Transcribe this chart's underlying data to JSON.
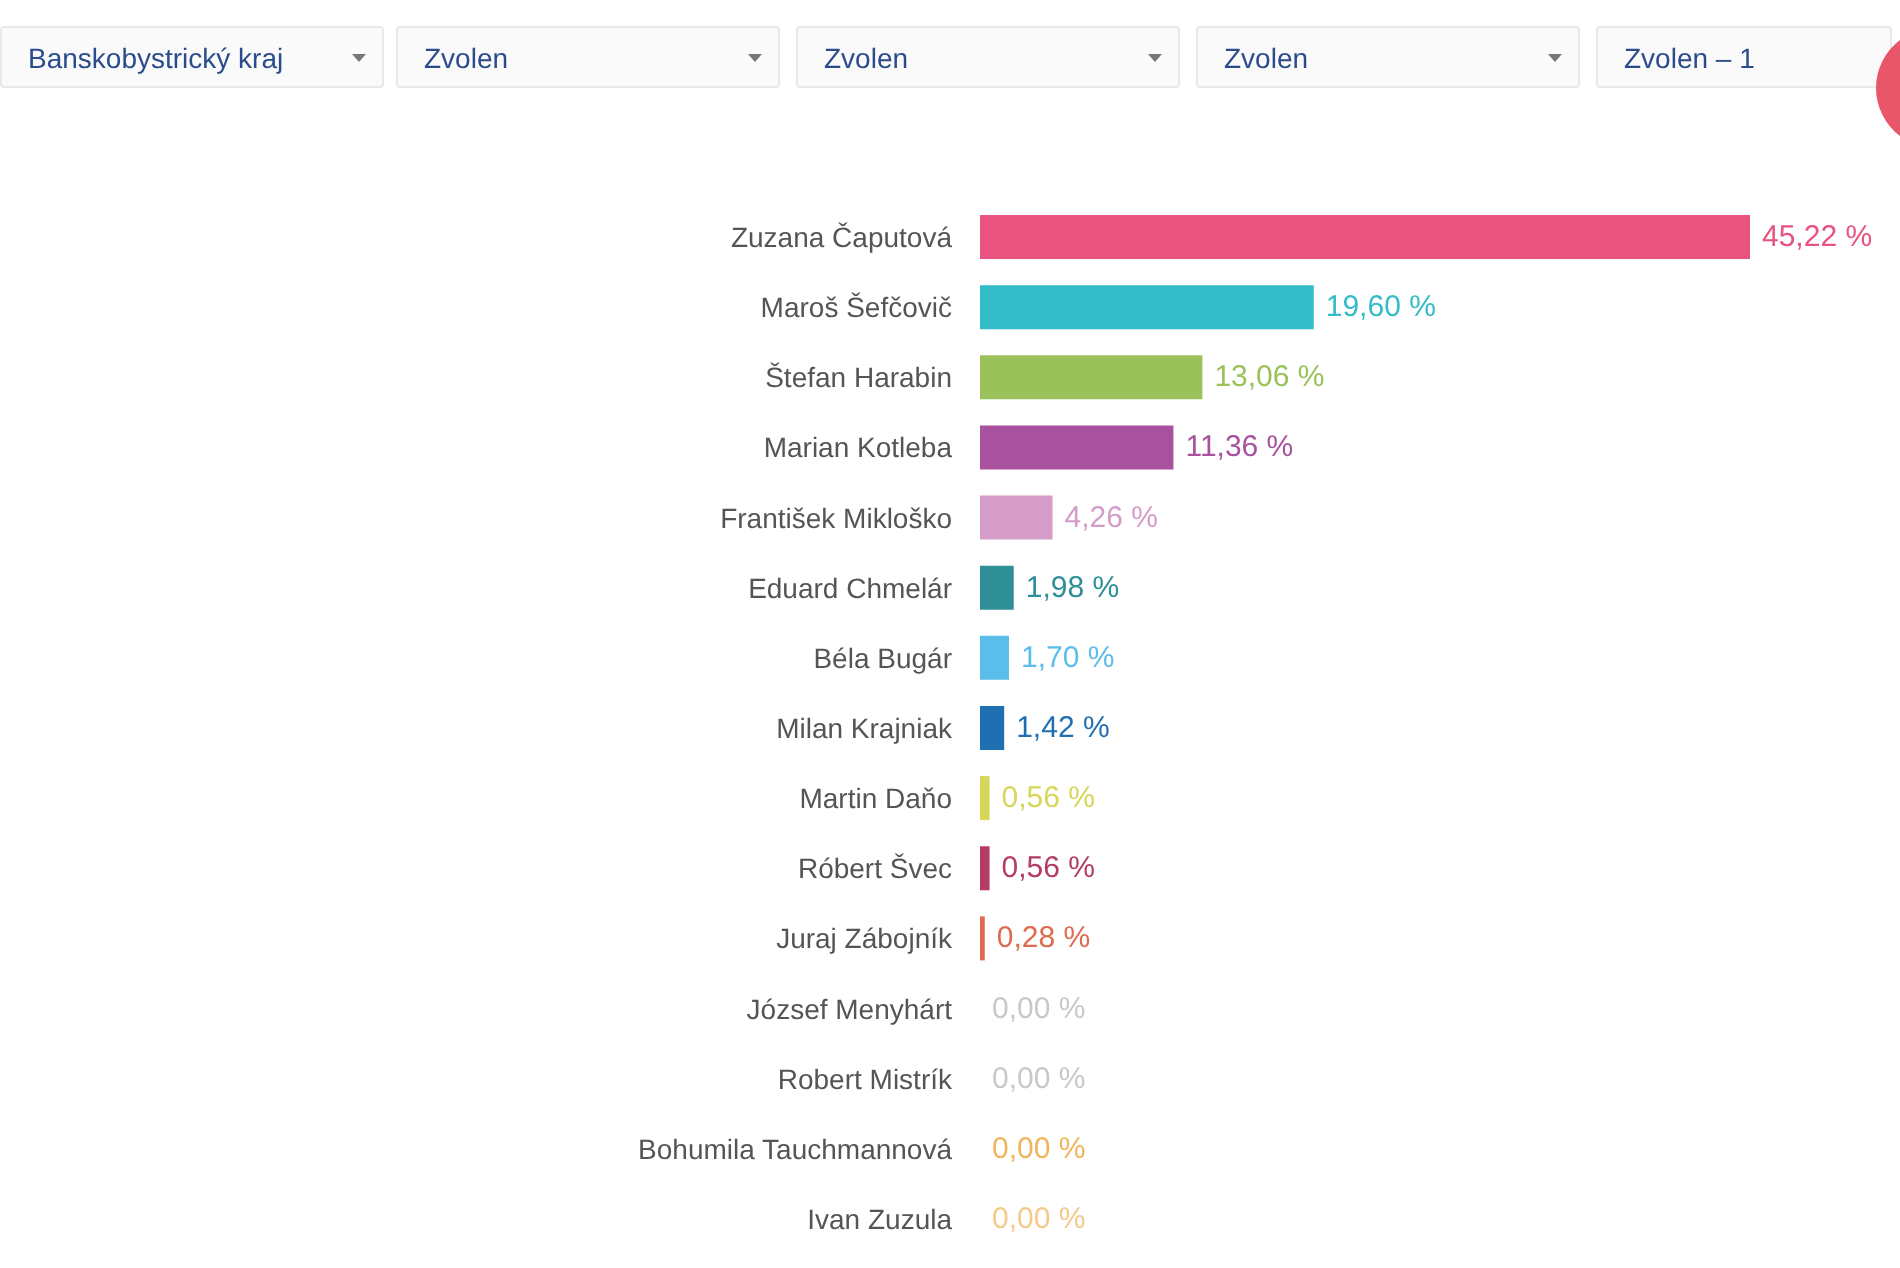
{
  "chart_data": {
    "type": "bar",
    "orientation": "horizontal",
    "tick_labels": "y",
    "categories": [
      "Zuzana Čaputová",
      "Maroš Šefčovič",
      "Štefan Harabin",
      "Marian Kotleba",
      "František Mikloško",
      "Eduard Chmelár",
      "Béla Bugár",
      "Milan Krajniak",
      "Martin Daňo",
      "Róbert Švec",
      "Juraj Zábojník",
      "József Menyhárt",
      "Robert Mistrík",
      "Bohumila Tauchmannová",
      "Ivan Zuzula"
    ],
    "values": [
      45.22,
      19.6,
      13.06,
      11.36,
      4.26,
      1.98,
      1.7,
      1.42,
      0.56,
      0.56,
      0.28,
      0.0,
      0.0,
      0.0,
      0.0
    ],
    "value_labels": [
      "45,22 %",
      "19,60 %",
      "13,06 %",
      "11,36 %",
      "4,26 %",
      "1,98 %",
      "1,70 %",
      "1,42 %",
      "0,56 %",
      "0,56 %",
      "0,28 %",
      "0,00 %",
      "0,00 %",
      "0,00 %",
      "0,00 %"
    ],
    "colors": [
      "#e8537f",
      "#34bcc8",
      "#9bc25a",
      "#a8519e",
      "#d49cc7",
      "#2f8f96",
      "#5bbdea",
      "#1f6fb2",
      "#d6d65a",
      "#b43b63",
      "#e06a4e",
      "#c8c8c8",
      "#c8c8c8",
      "#f0b45a",
      "#f5c98a"
    ],
    "annotations": [
      "Banskobystrický kraj",
      "Zvolen",
      "Zvolen",
      "Zvolen",
      "Zvolen – 1"
    ]
  }
}
